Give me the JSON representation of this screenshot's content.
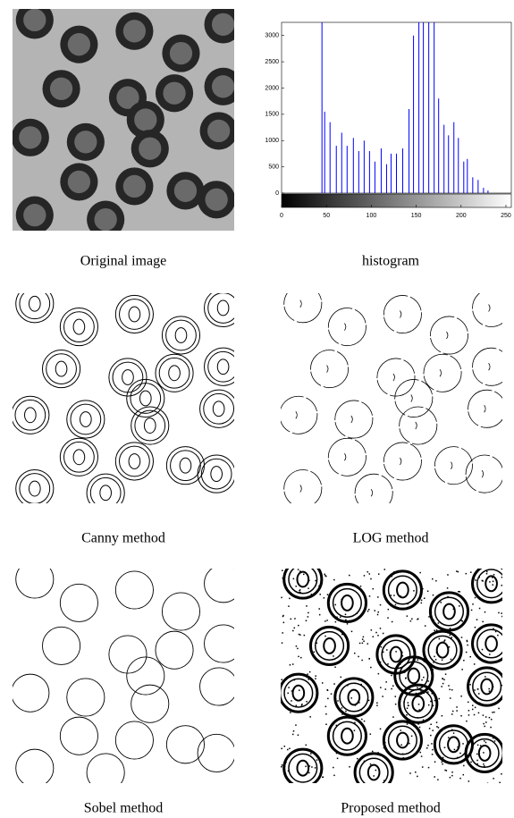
{
  "panels": [
    {
      "caption": "Original image"
    },
    {
      "caption": "histogram",
      "chart_data": {
        "type": "histogram-stem",
        "x": [
          45,
          48,
          54,
          61,
          67,
          73,
          80,
          86,
          92,
          98,
          104,
          111,
          117,
          122,
          128,
          135,
          142,
          147,
          153,
          158,
          164,
          170,
          175,
          181,
          186,
          192,
          197,
          203,
          207,
          213,
          219,
          225,
          230
        ],
        "values": [
          3250,
          1550,
          1350,
          900,
          1150,
          900,
          1050,
          800,
          1000,
          800,
          600,
          850,
          550,
          750,
          750,
          850,
          1600,
          3000,
          3250,
          3250,
          3250,
          3250,
          1800,
          1300,
          1100,
          1350,
          1050,
          600,
          650,
          300,
          250,
          100,
          50
        ],
        "color": "#0000ff",
        "xlim": [
          0,
          256
        ],
        "xticks": [
          0,
          50,
          100,
          150,
          200,
          250
        ],
        "ylim": [
          0,
          3250
        ],
        "yticks": [
          0,
          500,
          1000,
          1500,
          2000,
          2500,
          3000
        ]
      }
    },
    {
      "caption": "Canny method"
    },
    {
      "caption": "LOG method"
    },
    {
      "caption": "Sobel method"
    },
    {
      "caption": "Proposed method"
    }
  ]
}
